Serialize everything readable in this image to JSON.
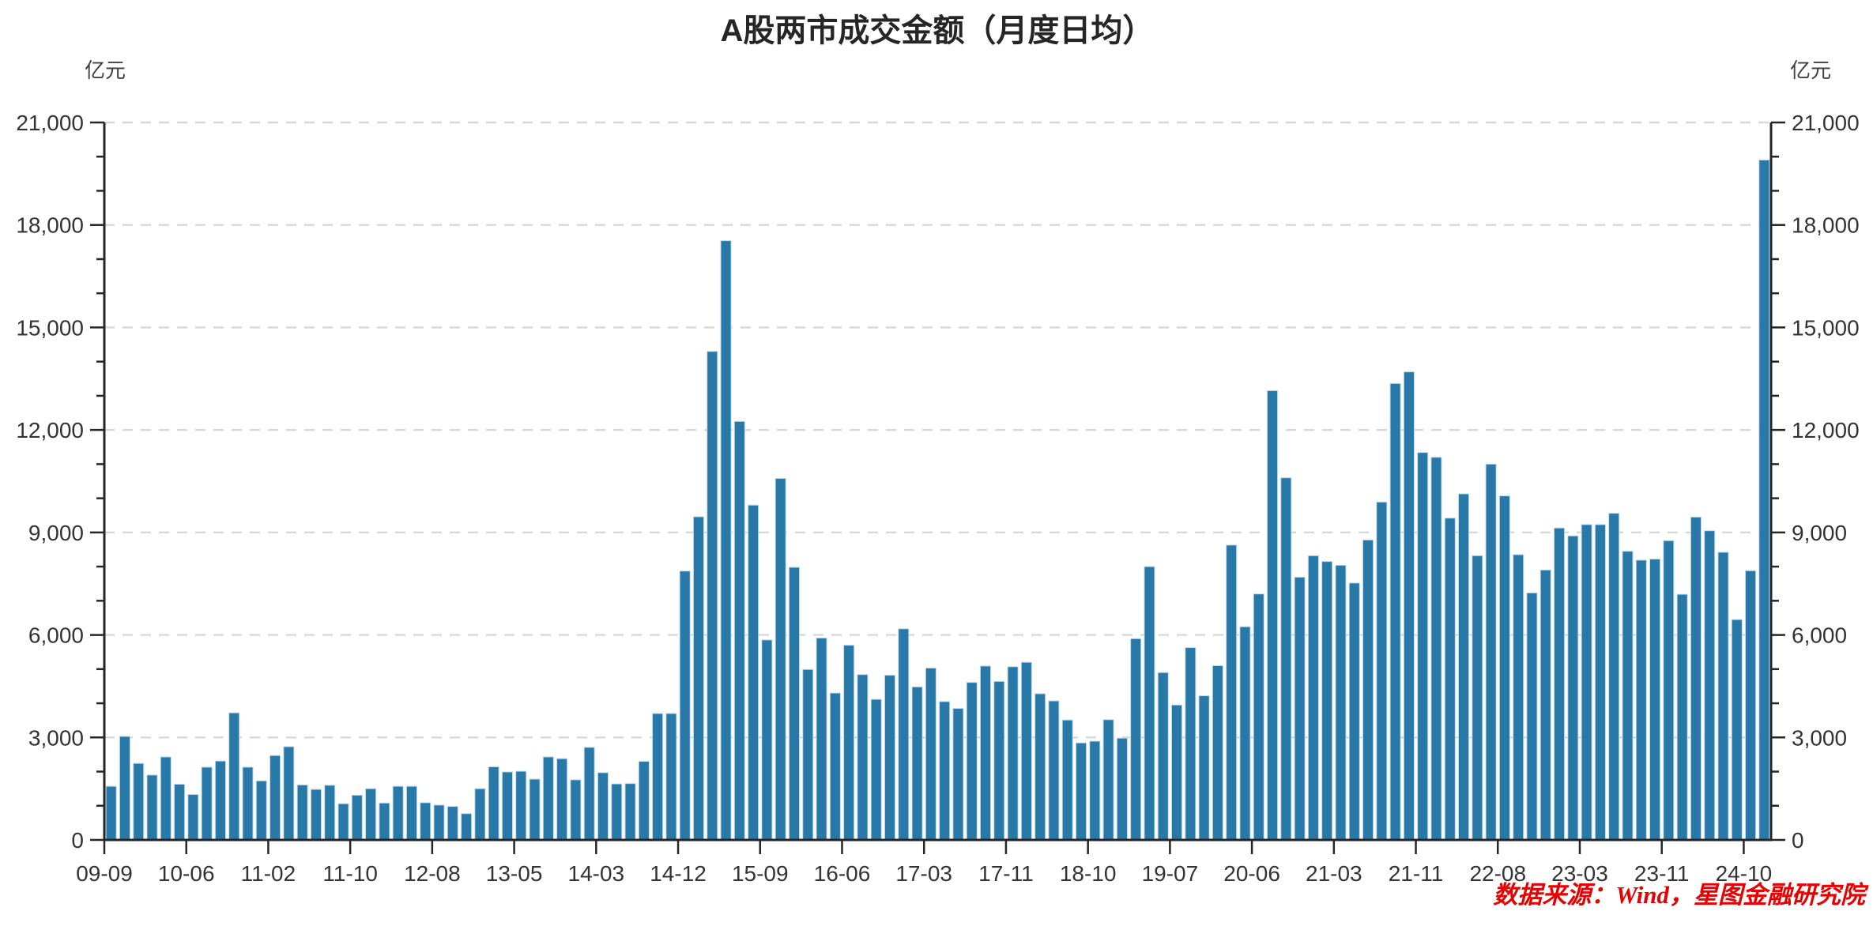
{
  "title": "A股两市成交金额（月度日均）",
  "source_note": "数据来源：Wind，星图金融研究院",
  "y_axis": {
    "unit_left": "亿元",
    "unit_right": "亿元",
    "tick_labels": [
      "0",
      "3,000",
      "6,000",
      "9,000",
      "12,000",
      "15,000",
      "18,000",
      "21,000"
    ]
  },
  "colors": {
    "bar": "#2878A8",
    "bar_edge": "#BFDAEA",
    "grid": "#D8D8D8",
    "axis": "#262626",
    "text": "#333333",
    "source": "#E60000",
    "background": "#FFFFFF"
  },
  "chart_data": {
    "type": "bar",
    "title": "A股两市成交金额（月度日均）",
    "ylabel": "亿元",
    "ylim": [
      0,
      21000
    ],
    "y_label_step": 3000,
    "y_minor_step": 1000,
    "grid": true,
    "legend": "none",
    "tick_every": 6,
    "tick_labels": [
      "09-09",
      "10-06",
      "11-02",
      "11-10",
      "12-08",
      "13-05",
      "14-03",
      "14-12",
      "15-09",
      "16-06",
      "17-03",
      "17-11",
      "18-10",
      "19-07",
      "20-06",
      "21-03",
      "21-11",
      "22-08",
      "23-03",
      "23-11",
      "24-10"
    ],
    "values": [
      1570,
      3030,
      2240,
      1900,
      2430,
      1630,
      1330,
      2130,
      2310,
      3720,
      2130,
      1730,
      2470,
      2730,
      1610,
      1480,
      1600,
      1060,
      1310,
      1500,
      1080,
      1570,
      1570,
      1090,
      1020,
      980,
      770,
      1500,
      2140,
      1990,
      2010,
      1780,
      2430,
      2380,
      1760,
      2710,
      1970,
      1640,
      1650,
      2300,
      3700,
      3700,
      7870,
      9460,
      14300,
      17540,
      12250,
      9800,
      5855,
      10580,
      7980,
      4990,
      5910,
      4300,
      5700,
      4840,
      4115,
      4820,
      6180,
      4480,
      5030,
      4050,
      3850,
      4610,
      5090,
      4640,
      5070,
      5200,
      4280,
      4070,
      3510,
      2840,
      2890,
      3520,
      2980,
      5890,
      8000,
      4900,
      3950,
      5630,
      4220,
      5100,
      8630,
      6240,
      7200,
      13150,
      10600,
      7690,
      8320,
      8150,
      8040,
      7520,
      8780,
      9890,
      13360,
      13700,
      11340,
      11200,
      9420,
      10130,
      8320,
      11000,
      10070,
      8350,
      7230,
      7900,
      9130,
      8900,
      9230,
      9230,
      9560,
      8450,
      8190,
      8220,
      8760,
      7190,
      9450,
      9050,
      8420,
      6450,
      7880,
      19900
    ]
  }
}
